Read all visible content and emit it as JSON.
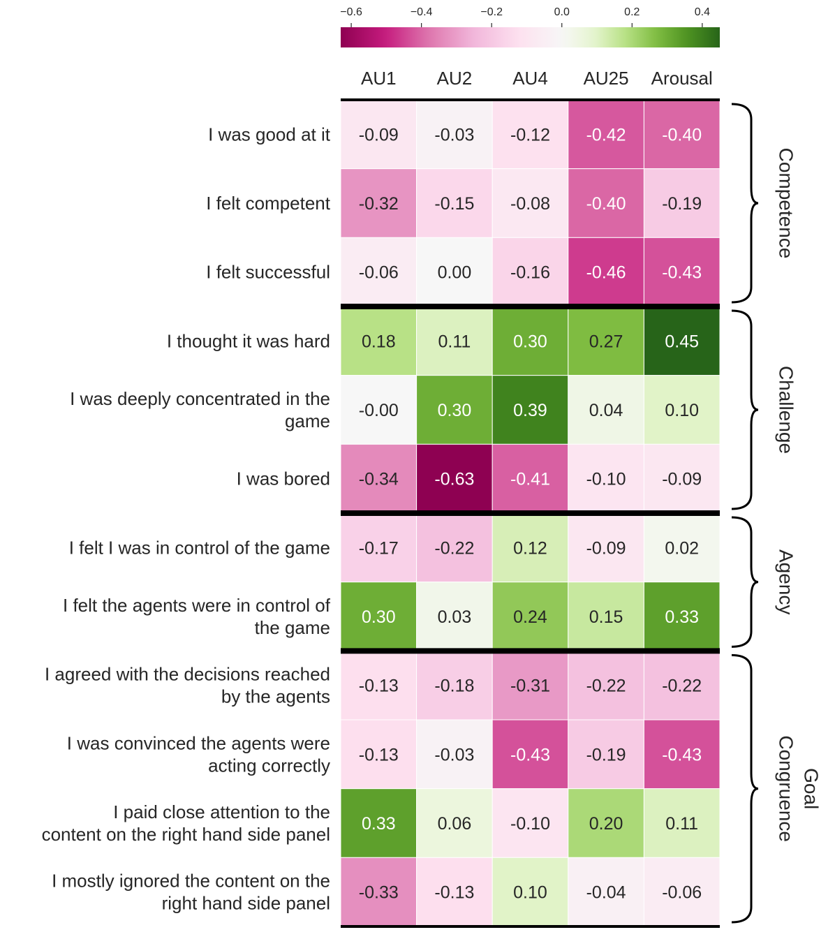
{
  "chart_data": {
    "type": "heatmap",
    "columns": [
      "AU1",
      "AU2",
      "AU4",
      "AU25",
      "Arousal"
    ],
    "rows": [
      {
        "label": [
          "I was good at it"
        ],
        "values": [
          -0.09,
          -0.03,
          -0.12,
          -0.42,
          -0.4
        ]
      },
      {
        "label": [
          "I felt competent"
        ],
        "values": [
          -0.32,
          -0.15,
          -0.08,
          -0.4,
          -0.19
        ]
      },
      {
        "label": [
          "I felt successful"
        ],
        "values": [
          -0.06,
          0.0,
          -0.16,
          -0.46,
          -0.43
        ]
      },
      {
        "label": [
          "I thought it was hard"
        ],
        "values": [
          0.18,
          0.11,
          0.3,
          0.27,
          0.45
        ]
      },
      {
        "label": [
          "I was deeply concentrated in the",
          "game"
        ],
        "values": [
          -0.001,
          0.3,
          0.39,
          0.04,
          0.1
        ]
      },
      {
        "label": [
          "I was bored"
        ],
        "values": [
          -0.34,
          -0.63,
          -0.41,
          -0.1,
          -0.09
        ]
      },
      {
        "label": [
          "I felt I was in control of the game"
        ],
        "values": [
          -0.17,
          -0.22,
          0.12,
          -0.09,
          0.02
        ]
      },
      {
        "label": [
          "I felt the agents were in control of",
          "the game"
        ],
        "values": [
          0.3,
          0.03,
          0.24,
          0.15,
          0.33
        ]
      },
      {
        "label": [
          "I agreed with the decisions reached",
          "by the agents"
        ],
        "values": [
          -0.13,
          -0.18,
          -0.31,
          -0.22,
          -0.22
        ]
      },
      {
        "label": [
          "I was convinced the agents were",
          "acting correctly"
        ],
        "values": [
          -0.13,
          -0.03,
          -0.43,
          -0.19,
          -0.43
        ]
      },
      {
        "label": [
          "I paid close attention to the",
          "content on the right hand side panel"
        ],
        "values": [
          0.33,
          0.06,
          -0.1,
          0.2,
          0.11
        ]
      },
      {
        "label": [
          "I mostly ignored the content on the",
          "right hand side panel"
        ],
        "values": [
          -0.33,
          -0.13,
          0.1,
          -0.04,
          -0.06
        ]
      }
    ],
    "cell_labels": [
      [
        "-0.09",
        "-0.03",
        "-0.12",
        "-0.42",
        "-0.40"
      ],
      [
        "-0.32",
        "-0.15",
        "-0.08",
        "-0.40",
        "-0.19"
      ],
      [
        "-0.06",
        "0.00",
        "-0.16",
        "-0.46",
        "-0.43"
      ],
      [
        "0.18",
        "0.11",
        "0.30",
        "0.27",
        "0.45"
      ],
      [
        "-0.00",
        "0.30",
        "0.39",
        "0.04",
        "0.10"
      ],
      [
        "-0.34",
        "-0.63",
        "-0.41",
        "-0.10",
        "-0.09"
      ],
      [
        "-0.17",
        "-0.22",
        "0.12",
        "-0.09",
        "0.02"
      ],
      [
        "0.30",
        "0.03",
        "0.24",
        "0.15",
        "0.33"
      ],
      [
        "-0.13",
        "-0.18",
        "-0.31",
        "-0.22",
        "-0.22"
      ],
      [
        "-0.13",
        "-0.03",
        "-0.43",
        "-0.19",
        "-0.43"
      ],
      [
        "0.33",
        "0.06",
        "-0.10",
        "0.20",
        "0.11"
      ],
      [
        "-0.33",
        "-0.13",
        "0.10",
        "-0.04",
        "-0.06"
      ]
    ],
    "groups": [
      {
        "name": [
          "Competence"
        ],
        "start": 0,
        "end": 2
      },
      {
        "name": [
          "Challenge"
        ],
        "start": 3,
        "end": 5
      },
      {
        "name": [
          "Agency"
        ],
        "start": 6,
        "end": 7
      },
      {
        "name": [
          "Goal",
          "Congruence"
        ],
        "start": 8,
        "end": 11
      }
    ],
    "colorbar": {
      "range": [
        -0.63,
        0.45
      ],
      "ticks": [
        -0.6,
        -0.4,
        -0.2,
        0.0,
        0.2,
        0.4
      ],
      "tick_labels": [
        "−0.6",
        "−0.4",
        "−0.2",
        "0.0",
        "0.2",
        "0.4"
      ],
      "placement": "top",
      "colormap": "PiYG"
    }
  }
}
